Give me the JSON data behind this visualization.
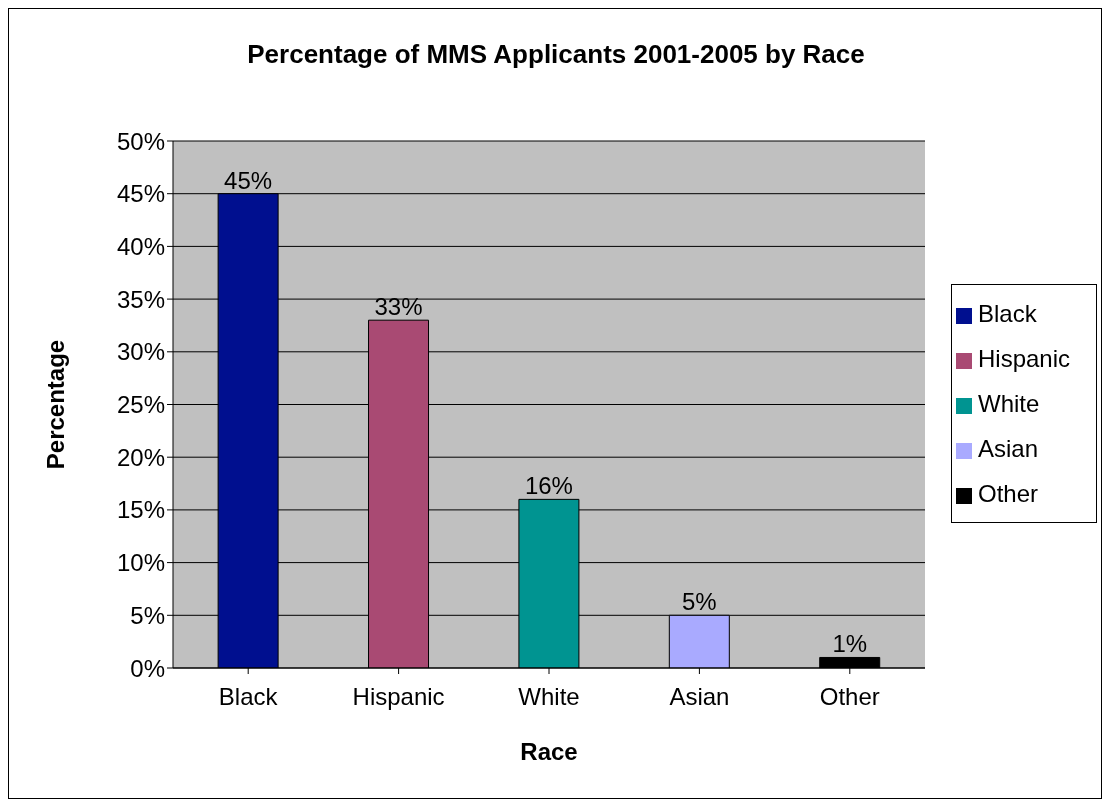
{
  "chart_data": {
    "type": "bar",
    "title": "Percentage of MMS Applicants 2001-2005 by Race",
    "xlabel": "Race",
    "ylabel": "Percentage",
    "categories": [
      "Black",
      "Hispanic",
      "White",
      "Asian",
      "Other"
    ],
    "stacked": true,
    "series": [
      {
        "name": "Black",
        "color": "#000f8f",
        "values": [
          45,
          null,
          null,
          null,
          null
        ],
        "value_labels": [
          "45%",
          null,
          null,
          null,
          null
        ]
      },
      {
        "name": "Hispanic",
        "color": "#a94a73",
        "values": [
          null,
          33,
          null,
          null,
          null
        ],
        "value_labels": [
          null,
          "33%",
          null,
          null,
          null
        ]
      },
      {
        "name": "White",
        "color": "#009491",
        "values": [
          null,
          null,
          16,
          null,
          null
        ],
        "value_labels": [
          null,
          null,
          "16%",
          null,
          null
        ]
      },
      {
        "name": "Asian",
        "color": "#a9aaff",
        "values": [
          null,
          null,
          null,
          5,
          null
        ],
        "value_labels": [
          null,
          null,
          null,
          "5%",
          null
        ]
      },
      {
        "name": "Other",
        "color": "#000000",
        "values": [
          null,
          null,
          null,
          null,
          1
        ],
        "value_labels": [
          null,
          null,
          null,
          null,
          "1%"
        ]
      }
    ],
    "ylim": [
      0,
      50
    ],
    "yticks": [
      {
        "value": 0,
        "label": "0%"
      },
      {
        "value": 5,
        "label": "5%"
      },
      {
        "value": 10,
        "label": "10%"
      },
      {
        "value": 15,
        "label": "15%"
      },
      {
        "value": 20,
        "label": "20%"
      },
      {
        "value": 25,
        "label": "25%"
      },
      {
        "value": 30,
        "label": "30%"
      },
      {
        "value": 35,
        "label": "35%"
      },
      {
        "value": 40,
        "label": "40%"
      },
      {
        "value": 45,
        "label": "45%"
      },
      {
        "value": 50,
        "label": "50%"
      }
    ],
    "grid": "y",
    "legend": "right"
  }
}
